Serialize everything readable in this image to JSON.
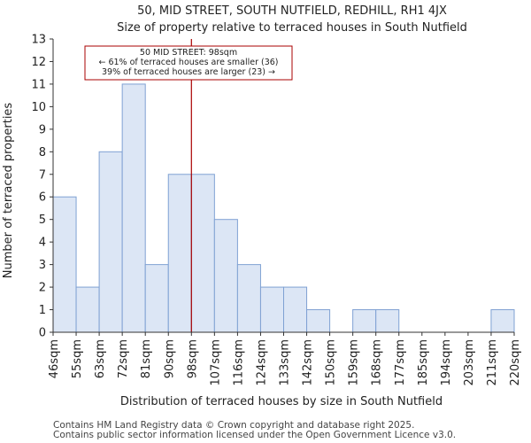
{
  "chart_data": {
    "type": "bar",
    "title": "50, MID STREET, SOUTH NUTFIELD, REDHILL, RH1 4JX",
    "subtitle": "Size of property relative to terraced houses in South Nutfield",
    "xlabel": "Distribution of terraced houses by size in South Nutfield",
    "ylabel": "Number of terraced properties",
    "bin_edges": [
      "46sqm",
      "55sqm",
      "63sqm",
      "72sqm",
      "81sqm",
      "90sqm",
      "98sqm",
      "107sqm",
      "116sqm",
      "124sqm",
      "133sqm",
      "142sqm",
      "150sqm",
      "159sqm",
      "168sqm",
      "177sqm",
      "185sqm",
      "194sqm",
      "203sqm",
      "211sqm",
      "220sqm"
    ],
    "values": [
      6,
      2,
      8,
      11,
      3,
      7,
      7,
      5,
      3,
      2,
      2,
      1,
      0,
      1,
      1,
      0,
      0,
      0,
      0,
      1
    ],
    "ylim": [
      0,
      13
    ],
    "yticks": [
      0,
      1,
      2,
      3,
      4,
      5,
      6,
      7,
      8,
      9,
      10,
      11,
      12,
      13
    ],
    "grid": false,
    "marker_bin_index": 6,
    "bar_color": "#dce6f5",
    "bar_edge_color": "#7fa1d3",
    "marker_color": "#aa0000",
    "annotation": {
      "line1": "50 MID STREET: 98sqm",
      "line2": "← 61% of terraced houses are smaller (36)",
      "line3": "39% of terraced houses are larger (23) →"
    }
  },
  "footer": {
    "line1": "Contains HM Land Registry data © Crown copyright and database right 2025.",
    "line2": "Contains public sector information licensed under the Open Government Licence v3.0."
  }
}
